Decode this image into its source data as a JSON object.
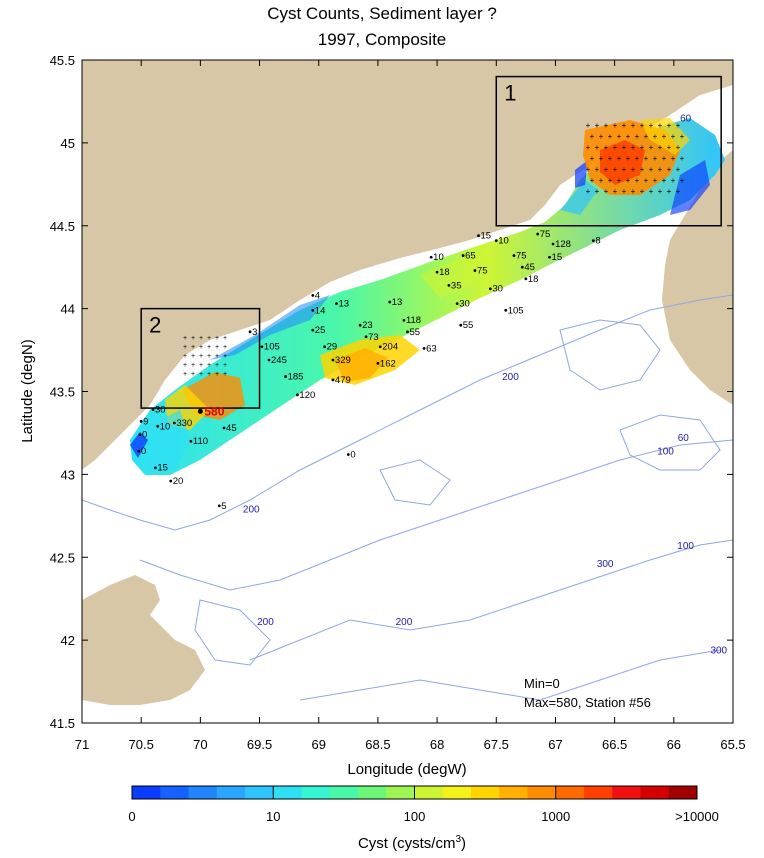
{
  "title": "Cyst Counts, Sediment layer ?",
  "subtitle": "1997, Composite",
  "axes": {
    "xlabel": "Longitude (degW)",
    "ylabel": "Latitude (degN)",
    "x_ticks": [
      "71",
      "70.5",
      "70",
      "69.5",
      "69",
      "68.5",
      "68",
      "67.5",
      "67",
      "66.5",
      "66",
      "65.5"
    ],
    "y_ticks": [
      "45.5",
      "45",
      "44.5",
      "44",
      "43.5",
      "43",
      "42.5",
      "42",
      "41.5"
    ],
    "xlim": [
      71,
      65.5
    ],
    "ylim": [
      41.5,
      45.5
    ]
  },
  "boxes": [
    {
      "label": "1",
      "lon": [
        67.5,
        65.6
      ],
      "lat": [
        44.5,
        45.4
      ]
    },
    {
      "label": "2",
      "lon": [
        70.5,
        69.5
      ],
      "lat": [
        43.4,
        44.0
      ]
    }
  ],
  "stations": [
    {
      "lon": 67.65,
      "lat": 44.44,
      "label": "15"
    },
    {
      "lon": 67.5,
      "lat": 44.41,
      "label": "10"
    },
    {
      "lon": 67.15,
      "lat": 44.45,
      "label": "75"
    },
    {
      "lon": 67.02,
      "lat": 44.39,
      "label": "128"
    },
    {
      "lon": 66.68,
      "lat": 44.41,
      "label": "8"
    },
    {
      "lon": 68.05,
      "lat": 44.31,
      "label": "10"
    },
    {
      "lon": 67.78,
      "lat": 44.32,
      "label": "65"
    },
    {
      "lon": 67.35,
      "lat": 44.32,
      "label": "75"
    },
    {
      "lon": 67.05,
      "lat": 44.31,
      "label": "15"
    },
    {
      "lon": 68.0,
      "lat": 44.22,
      "label": "18"
    },
    {
      "lon": 67.68,
      "lat": 44.23,
      "label": "75"
    },
    {
      "lon": 67.28,
      "lat": 44.25,
      "label": "45"
    },
    {
      "lon": 67.25,
      "lat": 44.18,
      "label": "18"
    },
    {
      "lon": 67.9,
      "lat": 44.14,
      "label": "35"
    },
    {
      "lon": 67.55,
      "lat": 44.12,
      "label": "30"
    },
    {
      "lon": 67.83,
      "lat": 44.03,
      "label": "30"
    },
    {
      "lon": 67.42,
      "lat": 43.99,
      "label": "105"
    },
    {
      "lon": 69.05,
      "lat": 44.08,
      "label": "4"
    },
    {
      "lon": 69.05,
      "lat": 43.99,
      "label": "14"
    },
    {
      "lon": 68.85,
      "lat": 44.03,
      "label": "13"
    },
    {
      "lon": 68.4,
      "lat": 44.04,
      "label": "13"
    },
    {
      "lon": 68.28,
      "lat": 43.93,
      "label": "118"
    },
    {
      "lon": 69.05,
      "lat": 43.87,
      "label": "25"
    },
    {
      "lon": 68.65,
      "lat": 43.9,
      "label": "23"
    },
    {
      "lon": 68.25,
      "lat": 43.86,
      "label": "55"
    },
    {
      "lon": 67.8,
      "lat": 43.9,
      "label": "55"
    },
    {
      "lon": 69.58,
      "lat": 43.86,
      "label": "3"
    },
    {
      "lon": 68.6,
      "lat": 43.83,
      "label": "73"
    },
    {
      "lon": 69.48,
      "lat": 43.77,
      "label": "105"
    },
    {
      "lon": 68.95,
      "lat": 43.77,
      "label": "29"
    },
    {
      "lon": 68.48,
      "lat": 43.77,
      "label": "204"
    },
    {
      "lon": 68.11,
      "lat": 43.76,
      "label": "63"
    },
    {
      "lon": 69.42,
      "lat": 43.69,
      "label": "245"
    },
    {
      "lon": 68.88,
      "lat": 43.69,
      "label": "329"
    },
    {
      "lon": 68.5,
      "lat": 43.67,
      "label": "162"
    },
    {
      "lon": 69.28,
      "lat": 43.59,
      "label": "185"
    },
    {
      "lon": 68.88,
      "lat": 43.57,
      "label": "479"
    },
    {
      "lon": 69.18,
      "lat": 43.48,
      "label": "120"
    },
    {
      "lon": 70.4,
      "lat": 43.39,
      "label": "30"
    },
    {
      "lon": 70.5,
      "lat": 43.32,
      "label": "9"
    },
    {
      "lon": 70.36,
      "lat": 43.29,
      "label": "10"
    },
    {
      "lon": 70.22,
      "lat": 43.31,
      "label": "330"
    },
    {
      "lon": 70.51,
      "lat": 43.24,
      "label": "0"
    },
    {
      "lon": 69.8,
      "lat": 43.28,
      "label": "45"
    },
    {
      "lon": 70.08,
      "lat": 43.2,
      "label": "110"
    },
    {
      "lon": 70.52,
      "lat": 43.14,
      "label": "0"
    },
    {
      "lon": 70.38,
      "lat": 43.04,
      "label": "15"
    },
    {
      "lon": 70.25,
      "lat": 42.96,
      "label": "20"
    },
    {
      "lon": 68.75,
      "lat": 43.12,
      "label": "0"
    },
    {
      "lon": 69.84,
      "lat": 42.81,
      "label": "5"
    }
  ],
  "max_station": {
    "lon": 70.0,
    "lat": 43.38,
    "label": "580",
    "color": "#e00000"
  },
  "contour_labels": [
    {
      "lon": 65.9,
      "lat": 45.13,
      "text": "60"
    },
    {
      "lon": 67.38,
      "lat": 43.57,
      "text": "200"
    },
    {
      "lon": 65.92,
      "lat": 43.2,
      "text": "60"
    },
    {
      "lon": 66.07,
      "lat": 43.12,
      "text": "100"
    },
    {
      "lon": 69.57,
      "lat": 42.77,
      "text": "200"
    },
    {
      "lon": 65.9,
      "lat": 42.55,
      "text": "100"
    },
    {
      "lon": 66.58,
      "lat": 42.44,
      "text": "300"
    },
    {
      "lon": 69.45,
      "lat": 42.09,
      "text": "200"
    },
    {
      "lon": 68.28,
      "lat": 42.09,
      "text": "200"
    },
    {
      "lon": 65.62,
      "lat": 41.92,
      "text": "300"
    }
  ],
  "stats": {
    "min": "Min=0",
    "max": "Max=580, Station #56"
  },
  "colorbar": {
    "label": "Cyst (cysts/cm",
    "label_sup": "3",
    "label_close": ")",
    "ticks": [
      "0",
      "10",
      "100",
      "1000",
      ">10000"
    ],
    "colors": [
      "#0a3cff",
      "#1462ff",
      "#1f86ff",
      "#29a6ff",
      "#2ec4ff",
      "#2fe0f5",
      "#36f5d2",
      "#4af7a8",
      "#6cf77a",
      "#9cf552",
      "#cef534",
      "#f4f21a",
      "#ffd400",
      "#ffb000",
      "#ff8c00",
      "#ff6a00",
      "#ff4000",
      "#f01010",
      "#d40000",
      "#a00000"
    ]
  },
  "colors": {
    "land": "#d8c7a6",
    "bathymetry": "#8fa6e6",
    "station_mark": "#000000"
  }
}
